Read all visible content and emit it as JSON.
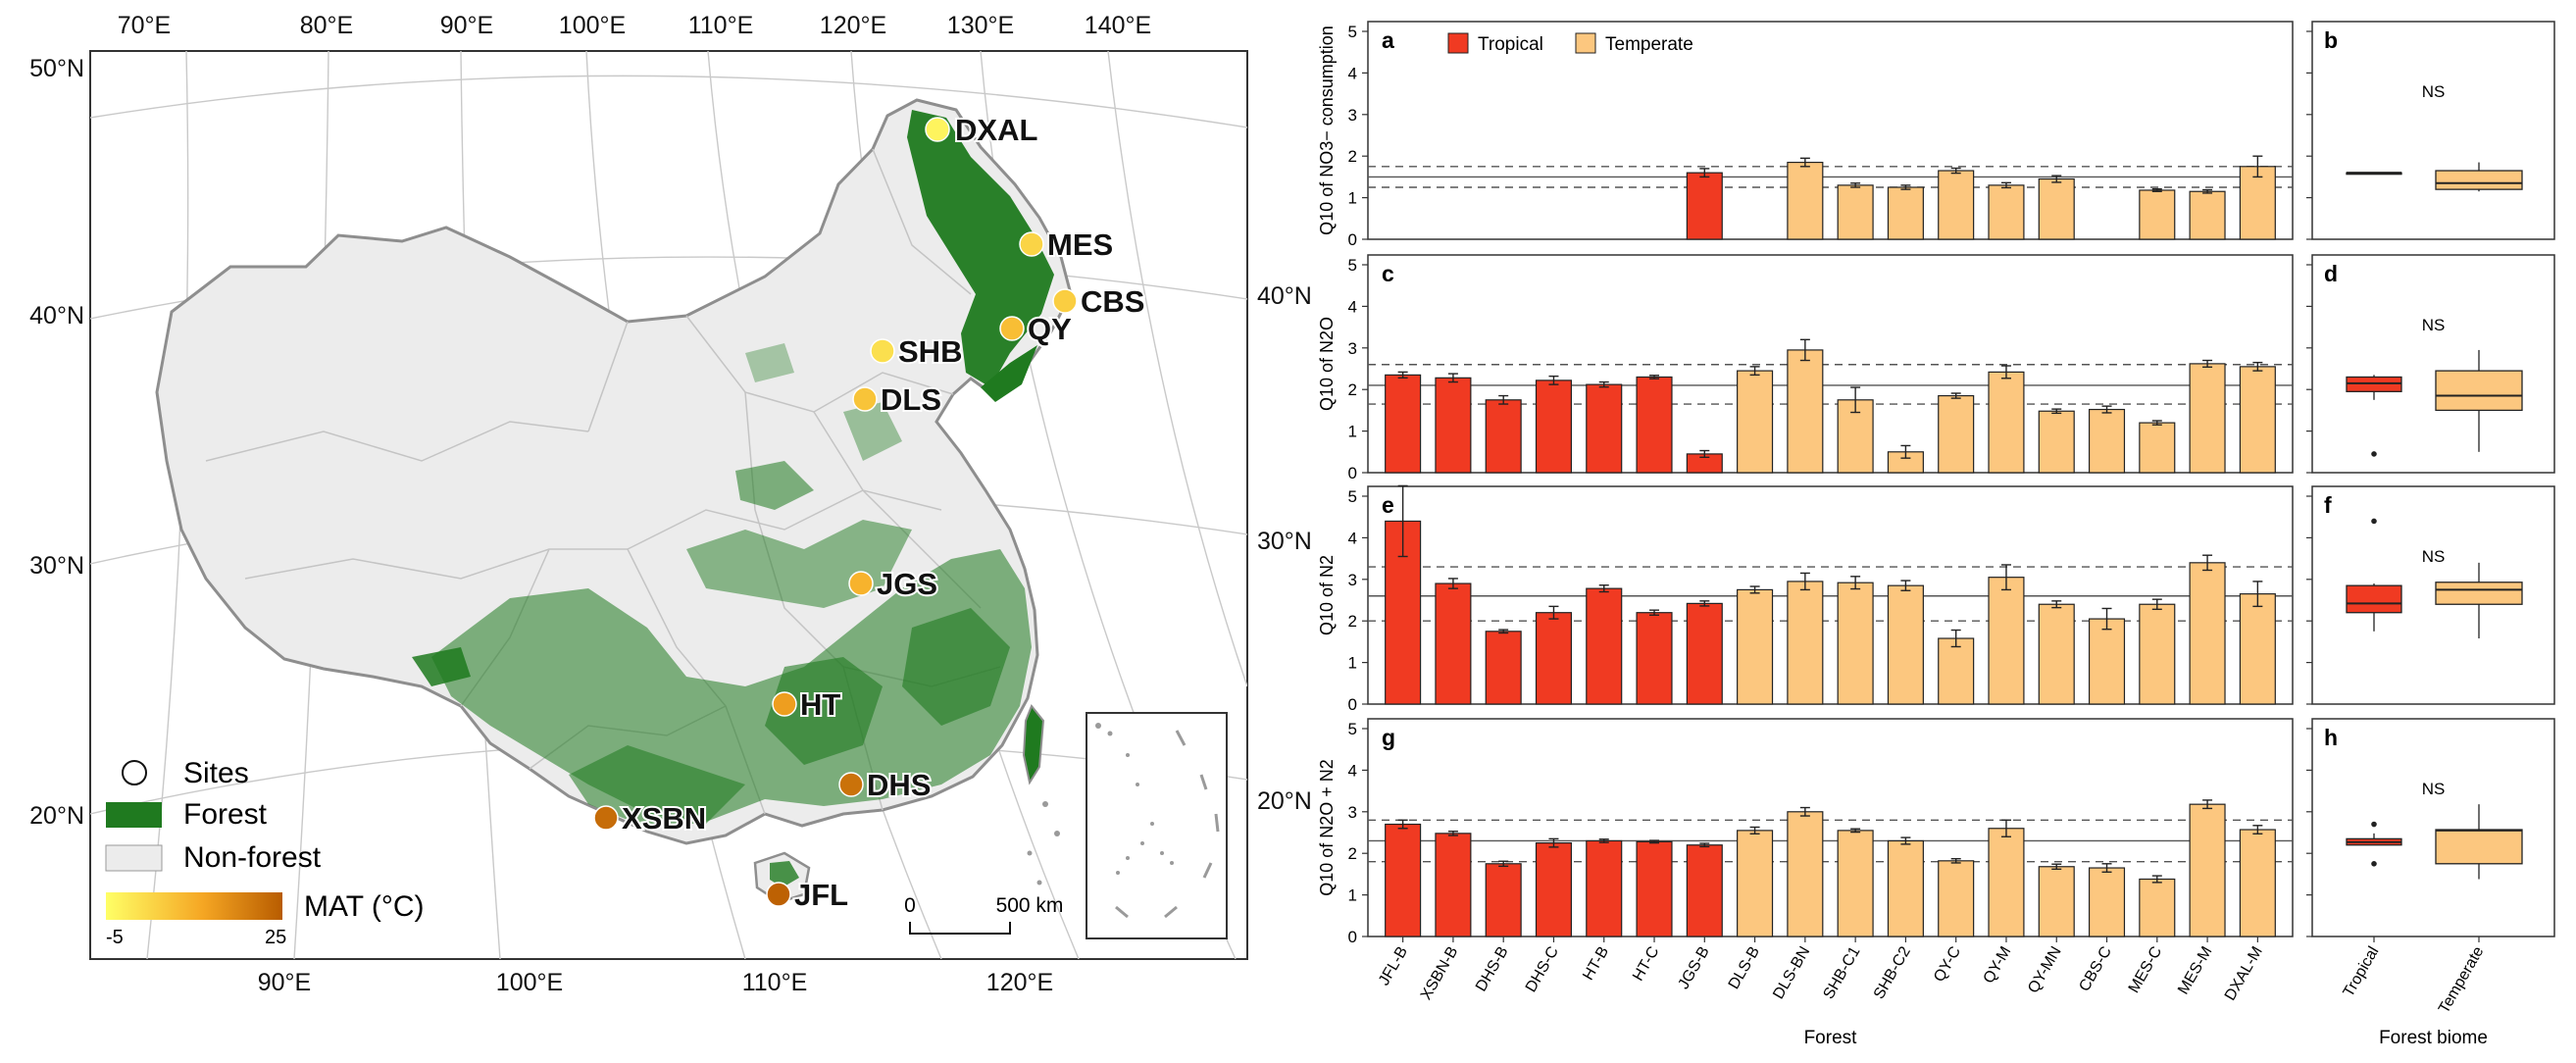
{
  "map": {
    "lon_labels_top": [
      "70°E",
      "80°E",
      "90°E",
      "100°E",
      "110°E",
      "120°E",
      "130°E",
      "140°E"
    ],
    "lon_labels_bottom": [
      "90°E",
      "100°E",
      "110°E",
      "120°E"
    ],
    "lat_labels_left": [
      "50°N",
      "40°N",
      "30°N",
      "20°N"
    ],
    "lat_labels_right": [
      "40°N",
      "30°N",
      "20°N"
    ],
    "sites": [
      {
        "name": "DXAL",
        "mat": -3
      },
      {
        "name": "MES",
        "mat": 3
      },
      {
        "name": "CBS",
        "mat": 4
      },
      {
        "name": "QY",
        "mat": 7
      },
      {
        "name": "SHB",
        "mat": 1
      },
      {
        "name": "DLS",
        "mat": 6
      },
      {
        "name": "JGS",
        "mat": 9
      },
      {
        "name": "HT",
        "mat": 13
      },
      {
        "name": "DHS",
        "mat": 21
      },
      {
        "name": "XSBN",
        "mat": 22
      },
      {
        "name": "JFL",
        "mat": 24
      }
    ],
    "legend": {
      "sites": "Sites",
      "forest": "Forest",
      "nonforest": "Non-forest",
      "mat_title": "MAT (°C)",
      "mat_min": "-5",
      "mat_max": "25"
    },
    "scalebar": {
      "zero": "0",
      "dist": "500 km"
    },
    "colors": {
      "forest": "#1f7a1f",
      "nonforest": "#ededed",
      "boundary": "#8e8e8e",
      "mat_low": "#ffff66",
      "mat_mid": "#f5a623",
      "mat_high": "#b85c00"
    }
  },
  "chart_data": [
    {
      "panel": "a",
      "type": "bar",
      "ylabel": "Q10 of NO3− consumption",
      "ylim": [
        0,
        5
      ],
      "yticks": [
        0,
        1,
        2,
        3,
        4,
        5
      ],
      "categories": [
        "JFL-B",
        "XSBN-B",
        "DHS-B",
        "DHS-C",
        "HT-B",
        "HT-C",
        "JGS-B",
        "DLS-B",
        "DLS-BN",
        "SHB-C1",
        "SHB-C2",
        "QY-C",
        "QY-M",
        "QY-MN",
        "CBS-C",
        "MES-C",
        "MES-M",
        "DXAL-M"
      ],
      "biome": [
        "T",
        "T",
        "T",
        "T",
        "T",
        "T",
        "T",
        "E",
        "E",
        "E",
        "E",
        "E",
        "E",
        "E",
        "E",
        "E",
        "E",
        "E"
      ],
      "values": [
        null,
        null,
        null,
        null,
        null,
        null,
        1.6,
        null,
        1.85,
        1.3,
        1.25,
        1.65,
        1.3,
        1.45,
        null,
        1.18,
        1.15,
        1.75
      ],
      "errors": [
        null,
        null,
        null,
        null,
        null,
        null,
        0.1,
        null,
        0.1,
        0.05,
        0.05,
        0.06,
        0.06,
        0.08,
        null,
        0.03,
        0.04,
        0.25
      ],
      "hlines": {
        "mean": 1.5,
        "upper": 1.75,
        "lower": 1.25
      },
      "legend": [
        {
          "name": "Tropical",
          "color": "#f03a22"
        },
        {
          "name": "Temperate",
          "color": "#fcc77f"
        }
      ]
    },
    {
      "panel": "c",
      "type": "bar",
      "ylabel": "Q10 of N2O",
      "ylim": [
        0,
        5
      ],
      "yticks": [
        0,
        1,
        2,
        3,
        4,
        5
      ],
      "values": [
        2.35,
        2.28,
        1.75,
        2.22,
        2.12,
        2.3,
        0.45,
        2.45,
        2.95,
        1.75,
        0.5,
        1.85,
        2.42,
        1.48,
        1.52,
        1.2,
        2.62,
        2.55
      ],
      "errors": [
        0.07,
        0.1,
        0.1,
        0.1,
        0.06,
        0.04,
        0.08,
        0.1,
        0.25,
        0.3,
        0.15,
        0.06,
        0.15,
        0.05,
        0.08,
        0.05,
        0.08,
        0.1
      ],
      "hlines": {
        "mean": 2.1,
        "upper": 2.6,
        "lower": 1.65
      }
    },
    {
      "panel": "e",
      "type": "bar",
      "ylabel": "Q10 of N2",
      "ylim": [
        0,
        5
      ],
      "yticks": [
        0,
        1,
        2,
        3,
        4,
        5
      ],
      "values": [
        4.4,
        2.9,
        1.75,
        2.2,
        2.78,
        2.2,
        2.42,
        2.75,
        2.95,
        2.92,
        2.85,
        1.58,
        3.05,
        2.4,
        2.05,
        2.4,
        3.4,
        2.65
      ],
      "errors": [
        0.85,
        0.12,
        0.04,
        0.15,
        0.08,
        0.06,
        0.06,
        0.08,
        0.2,
        0.15,
        0.12,
        0.2,
        0.3,
        0.08,
        0.25,
        0.12,
        0.18,
        0.3
      ],
      "hlines": {
        "mean": 2.6,
        "upper": 3.3,
        "lower": 2.0
      }
    },
    {
      "panel": "g",
      "type": "bar",
      "ylabel": "Q10 of N2O + N2",
      "xlabel": "Forest",
      "ylim": [
        0,
        5
      ],
      "yticks": [
        0,
        1,
        2,
        3,
        4,
        5
      ],
      "values": [
        2.7,
        2.48,
        1.75,
        2.25,
        2.3,
        2.28,
        2.2,
        2.55,
        3.0,
        2.55,
        2.3,
        1.82,
        2.6,
        1.68,
        1.65,
        1.38,
        3.18,
        2.57
      ],
      "errors": [
        0.1,
        0.05,
        0.06,
        0.1,
        0.04,
        0.03,
        0.04,
        0.08,
        0.1,
        0.04,
        0.08,
        0.05,
        0.2,
        0.06,
        0.1,
        0.08,
        0.1,
        0.1
      ],
      "hlines": {
        "mean": 2.3,
        "upper": 2.8,
        "lower": 1.8
      }
    },
    {
      "panel": "b",
      "type": "box",
      "categories": [
        "Tropical",
        "Temperate"
      ],
      "annotation": "NS",
      "boxes": [
        {
          "median": 1.6,
          "q1": 1.6,
          "q3": 1.6,
          "min": 1.6,
          "max": 1.6,
          "outliers": []
        },
        {
          "median": 1.35,
          "q1": 1.2,
          "q3": 1.65,
          "min": 1.15,
          "max": 1.85,
          "outliers": []
        }
      ]
    },
    {
      "panel": "d",
      "type": "box",
      "annotation": "NS",
      "boxes": [
        {
          "median": 2.15,
          "q1": 1.95,
          "q3": 2.3,
          "min": 1.75,
          "max": 2.35,
          "outliers": [
            0.45
          ]
        },
        {
          "median": 1.85,
          "q1": 1.5,
          "q3": 2.45,
          "min": 0.5,
          "max": 2.95,
          "outliers": []
        }
      ]
    },
    {
      "panel": "f",
      "type": "box",
      "annotation": "NS",
      "boxes": [
        {
          "median": 2.42,
          "q1": 2.2,
          "q3": 2.85,
          "min": 1.75,
          "max": 2.9,
          "outliers": [
            4.4
          ]
        },
        {
          "median": 2.75,
          "q1": 2.4,
          "q3": 2.93,
          "min": 1.58,
          "max": 3.4,
          "outliers": []
        }
      ]
    },
    {
      "panel": "h",
      "type": "box",
      "xlabel": "Forest biome",
      "annotation": "NS",
      "boxes": [
        {
          "median": 2.27,
          "q1": 2.2,
          "q3": 2.35,
          "min": 2.2,
          "max": 2.48,
          "outliers": [
            2.7,
            1.75
          ]
        },
        {
          "median": 2.55,
          "q1": 1.75,
          "q3": 2.57,
          "min": 1.38,
          "max": 3.18,
          "outliers": []
        }
      ]
    }
  ]
}
